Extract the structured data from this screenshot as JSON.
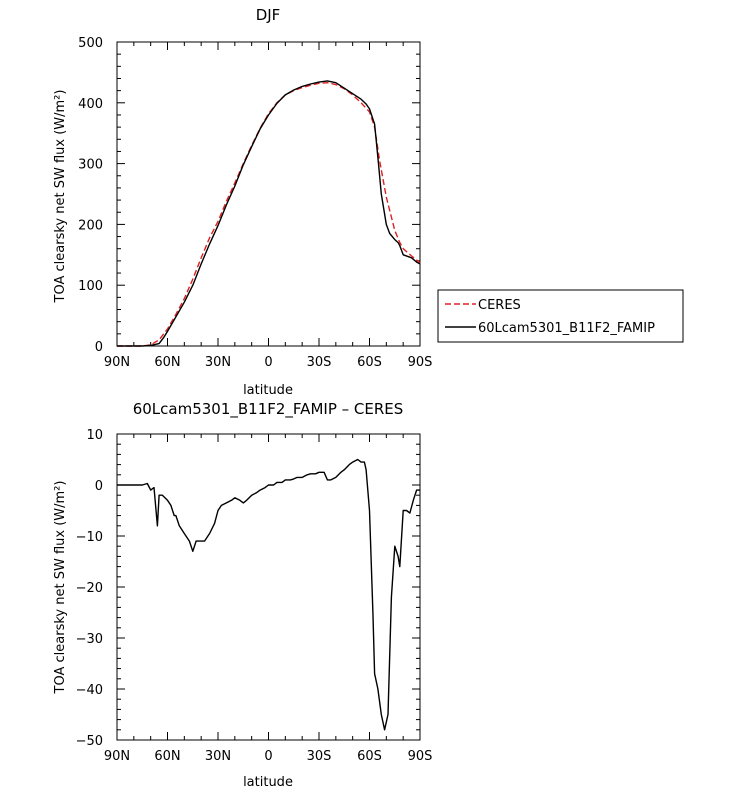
{
  "chart_data": [
    {
      "type": "line",
      "title": "DJF",
      "xlabel": "latitude",
      "ylabel": "TOA clearsky net SW flux (W/m²)",
      "xlim": [
        -90,
        90
      ],
      "ylim": [
        0,
        500
      ],
      "x_ticks": [
        "90N",
        "60N",
        "30N",
        "0",
        "30S",
        "60S",
        "90S"
      ],
      "y_ticks": [
        "0",
        "100",
        "200",
        "300",
        "400",
        "500"
      ],
      "legend": {
        "placement": "right"
      },
      "grid": false,
      "series": [
        {
          "name": "CERES",
          "color": "#e02020",
          "style": "dashed",
          "points": [
            [
              -90,
              0
            ],
            [
              -75,
              0
            ],
            [
              -70,
              2
            ],
            [
              -65,
              10
            ],
            [
              -60,
              28
            ],
            [
              -55,
              52
            ],
            [
              -50,
              78
            ],
            [
              -45,
              110
            ],
            [
              -40,
              145
            ],
            [
              -35,
              178
            ],
            [
              -30,
              205
            ],
            [
              -25,
              238
            ],
            [
              -20,
              268
            ],
            [
              -15,
              300
            ],
            [
              -10,
              330
            ],
            [
              -5,
              358
            ],
            [
              0,
              382
            ],
            [
              5,
              400
            ],
            [
              10,
              413
            ],
            [
              15,
              420
            ],
            [
              20,
              425
            ],
            [
              25,
              429
            ],
            [
              30,
              432
            ],
            [
              35,
              433
            ],
            [
              40,
              430
            ],
            [
              45,
              423
            ],
            [
              50,
              413
            ],
            [
              55,
              400
            ],
            [
              60,
              385
            ],
            [
              63,
              360
            ],
            [
              66,
              305
            ],
            [
              70,
              245
            ],
            [
              75,
              190
            ],
            [
              78,
              170
            ],
            [
              80,
              160
            ],
            [
              85,
              148
            ],
            [
              90,
              137
            ]
          ]
        },
        {
          "name": "60Lcam5301_B11F2_FAMIP",
          "color": "#000000",
          "style": "solid",
          "points": [
            [
              -90,
              0
            ],
            [
              -75,
              0
            ],
            [
              -70,
              1
            ],
            [
              -65,
              4
            ],
            [
              -62,
              15
            ],
            [
              -60,
              24
            ],
            [
              -55,
              48
            ],
            [
              -50,
              72
            ],
            [
              -45,
              100
            ],
            [
              -40,
              135
            ],
            [
              -35,
              168
            ],
            [
              -30,
              198
            ],
            [
              -25,
              232
            ],
            [
              -20,
              263
            ],
            [
              -15,
              298
            ],
            [
              -10,
              328
            ],
            [
              -5,
              357
            ],
            [
              0,
              380
            ],
            [
              5,
              399
            ],
            [
              10,
              413
            ],
            [
              15,
              421
            ],
            [
              20,
              427
            ],
            [
              25,
              431
            ],
            [
              30,
              434
            ],
            [
              35,
              436
            ],
            [
              40,
              433
            ],
            [
              45,
              424
            ],
            [
              50,
              415
            ],
            [
              55,
              406
            ],
            [
              58,
              398
            ],
            [
              60,
              390
            ],
            [
              63,
              365
            ],
            [
              65,
              310
            ],
            [
              67,
              250
            ],
            [
              70,
              200
            ],
            [
              72,
              185
            ],
            [
              75,
              175
            ],
            [
              77,
              170
            ],
            [
              78,
              165
            ],
            [
              80,
              150
            ],
            [
              85,
              145
            ],
            [
              88,
              138
            ],
            [
              90,
              135
            ]
          ]
        }
      ]
    },
    {
      "type": "line",
      "title": "60Lcam5301_B11F2_FAMIP – CERES",
      "xlabel": "latitude",
      "ylabel": "TOA clearsky net SW flux (W/m²)",
      "xlim": [
        -90,
        90
      ],
      "ylim": [
        -50,
        10
      ],
      "x_ticks": [
        "90N",
        "60N",
        "30N",
        "0",
        "30S",
        "60S",
        "90S"
      ],
      "y_ticks": [
        "10",
        "0",
        "−10",
        "−20",
        "−30",
        "−40",
        "−50"
      ],
      "grid": false,
      "series": [
        {
          "color": "#000000",
          "style": "solid",
          "points": [
            [
              -90,
              0
            ],
            [
              -75,
              0
            ],
            [
              -72,
              0.3
            ],
            [
              -70,
              -1
            ],
            [
              -68,
              -0.5
            ],
            [
              -66,
              -8
            ],
            [
              -65,
              -2
            ],
            [
              -63,
              -2
            ],
            [
              -60,
              -3
            ],
            [
              -58,
              -4
            ],
            [
              -56,
              -6
            ],
            [
              -55,
              -6
            ],
            [
              -53,
              -8
            ],
            [
              -50,
              -9.5
            ],
            [
              -47,
              -11
            ],
            [
              -45,
              -13
            ],
            [
              -43,
              -11
            ],
            [
              -40,
              -11
            ],
            [
              -38,
              -11
            ],
            [
              -35,
              -9.5
            ],
            [
              -32,
              -7.5
            ],
            [
              -30,
              -5
            ],
            [
              -28,
              -4
            ],
            [
              -25,
              -3.5
            ],
            [
              -22,
              -3
            ],
            [
              -20,
              -2.5
            ],
            [
              -17,
              -3
            ],
            [
              -15,
              -3.5
            ],
            [
              -13,
              -3
            ],
            [
              -10,
              -2
            ],
            [
              -7,
              -1.5
            ],
            [
              -5,
              -1
            ],
            [
              -2,
              -0.5
            ],
            [
              0,
              0
            ],
            [
              3,
              0
            ],
            [
              5,
              0.5
            ],
            [
              8,
              0.5
            ],
            [
              10,
              1
            ],
            [
              13,
              1
            ],
            [
              15,
              1.2
            ],
            [
              17,
              1.5
            ],
            [
              20,
              1.5
            ],
            [
              23,
              2
            ],
            [
              25,
              2.2
            ],
            [
              28,
              2.2
            ],
            [
              30,
              2.5
            ],
            [
              33,
              2.5
            ],
            [
              35,
              1
            ],
            [
              37,
              1
            ],
            [
              40,
              1.5
            ],
            [
              43,
              2.5
            ],
            [
              45,
              3
            ],
            [
              48,
              4
            ],
            [
              50,
              4.5
            ],
            [
              53,
              5
            ],
            [
              55,
              4.5
            ],
            [
              57,
              4.5
            ],
            [
              58,
              3
            ],
            [
              60,
              -5
            ],
            [
              62,
              -25
            ],
            [
              63,
              -37
            ],
            [
              65,
              -40
            ],
            [
              67,
              -45
            ],
            [
              69,
              -48
            ],
            [
              71,
              -45
            ],
            [
              73,
              -22
            ],
            [
              75,
              -12
            ],
            [
              77,
              -14
            ],
            [
              78,
              -16
            ],
            [
              80,
              -5
            ],
            [
              82,
              -5
            ],
            [
              84,
              -5.5
            ],
            [
              86,
              -3
            ],
            [
              88,
              -1
            ],
            [
              90,
              -1
            ]
          ]
        }
      ]
    }
  ]
}
